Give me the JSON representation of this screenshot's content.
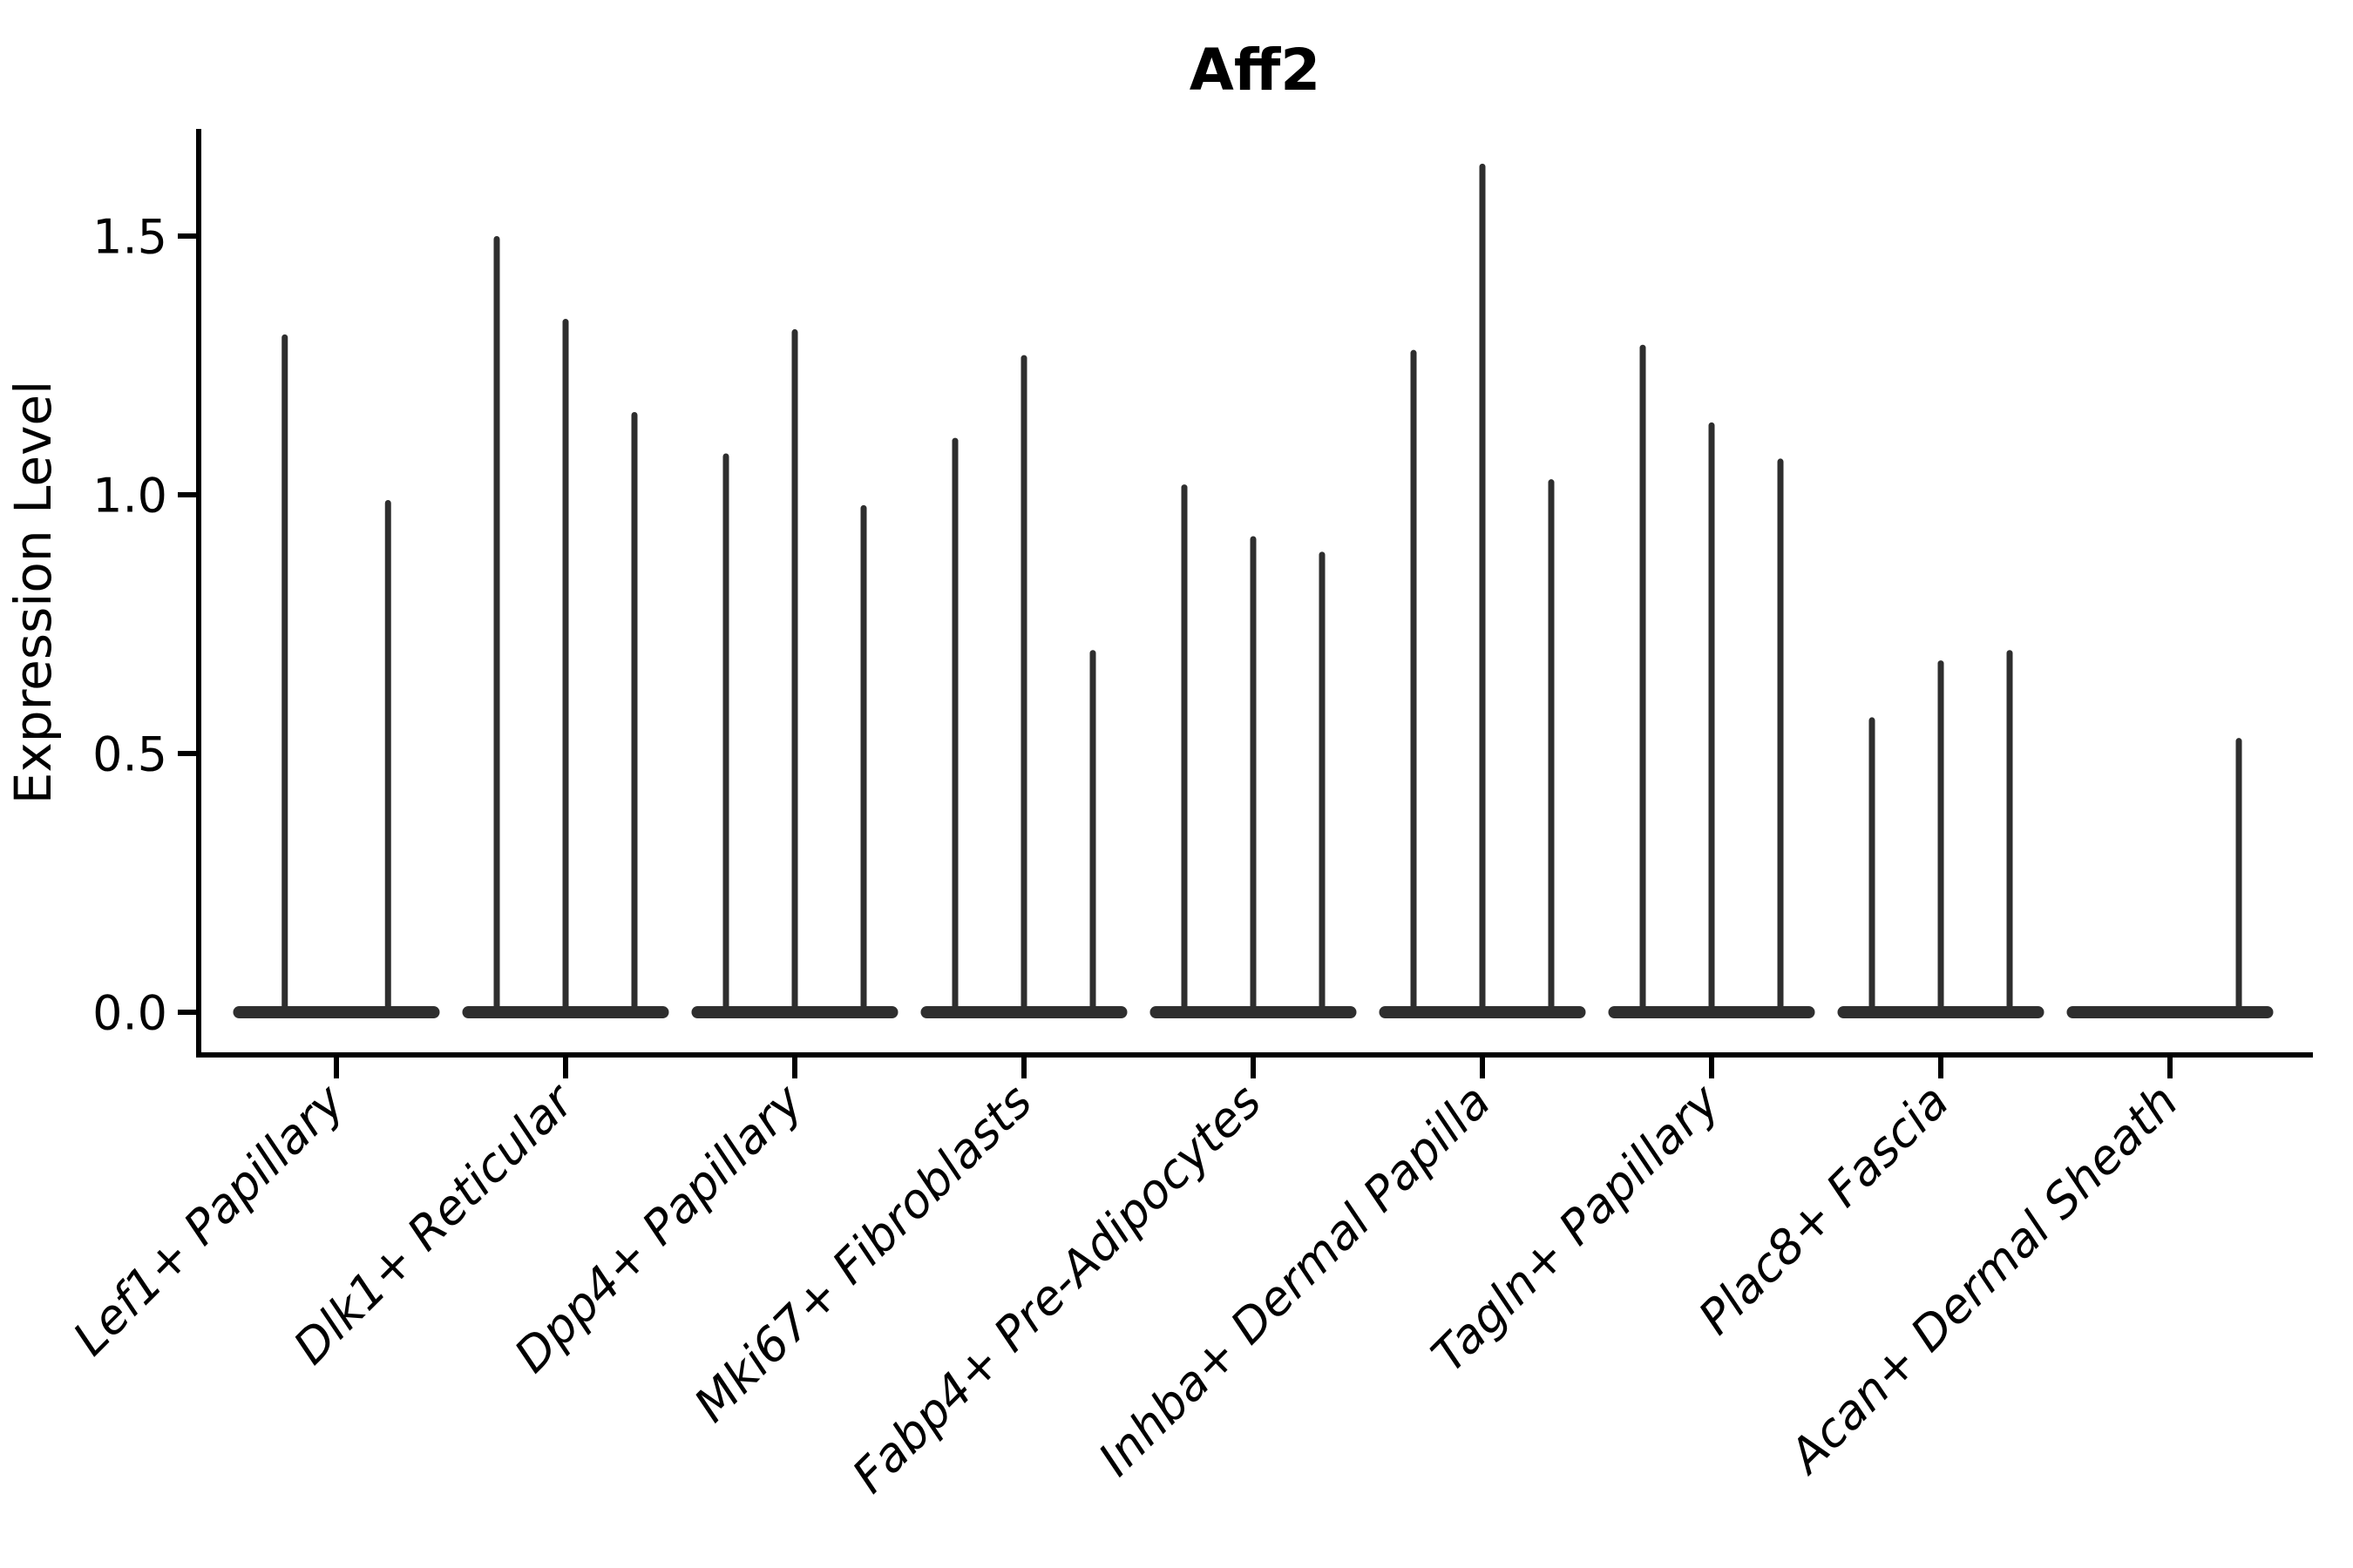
{
  "chart_data": {
    "type": "violin",
    "title": "Aff2",
    "xlabel": "",
    "ylabel": "Expression Level",
    "ylim": [
      -0.08,
      1.71
    ],
    "grid": false,
    "legend_position": "none",
    "style": {
      "background": "#ffffff",
      "axis_color": "#000000",
      "violin_color": "#2e2e2e"
    },
    "yticks": [
      {
        "value": 0.0,
        "label": "0.0"
      },
      {
        "value": 0.5,
        "label": "0.5"
      },
      {
        "value": 1.0,
        "label": "1.0"
      },
      {
        "value": 1.5,
        "label": "1.5"
      }
    ],
    "categories": [
      "Lef1+ Papillary",
      "Dlk1+ Reticular",
      "Dpp4+ Papillary",
      "Mki67+ Fibroblasts",
      "Fabp4+ Pre-Adipocytes",
      "Inhba+ Dermal Papilla",
      "Tagln+ Papillary",
      "Plac8+ Fascia",
      "Acan+ Dermal Sheath"
    ],
    "violins": [
      {
        "category": "Lef1+ Papillary",
        "sub_violin_maxima": [
          1.31,
          0.99
        ]
      },
      {
        "category": "Dlk1+ Reticular",
        "sub_violin_maxima": [
          1.5,
          1.34,
          1.16
        ]
      },
      {
        "category": "Dpp4+ Papillary",
        "sub_violin_maxima": [
          1.08,
          1.32,
          0.98
        ]
      },
      {
        "category": "Mki67+ Fibroblasts",
        "sub_violin_maxima": [
          1.11,
          1.27,
          0.7
        ]
      },
      {
        "category": "Fabp4+ Pre-Adipocytes",
        "sub_violin_maxima": [
          1.02,
          0.92,
          0.89
        ]
      },
      {
        "category": "Inhba+ Dermal Papilla",
        "sub_violin_maxima": [
          1.28,
          1.64,
          1.03
        ]
      },
      {
        "category": "Tagln+ Papillary",
        "sub_violin_maxima": [
          1.29,
          1.14,
          1.07
        ]
      },
      {
        "category": "Plac8+ Fascia",
        "sub_violin_maxima": [
          0.57,
          0.68,
          0.7
        ]
      },
      {
        "category": "Acan+ Dermal Sheath",
        "sub_violin_maxima": [
          0.0,
          0.0,
          0.53
        ]
      }
    ]
  }
}
